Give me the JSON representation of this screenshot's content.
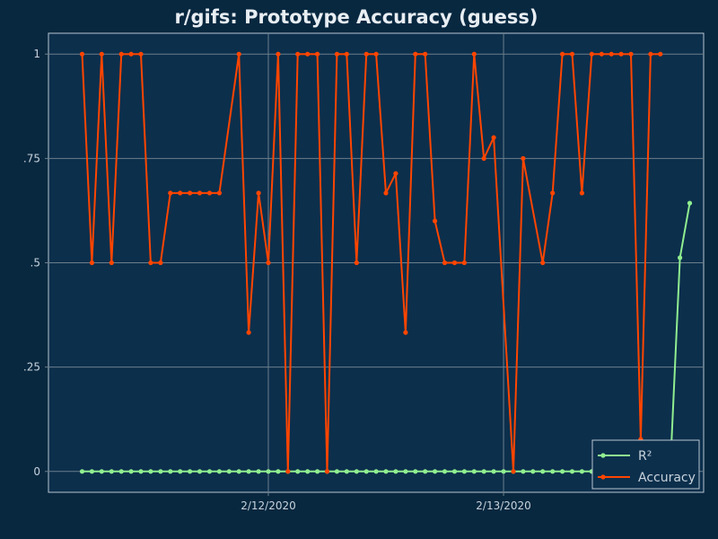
{
  "chart_data": {
    "type": "line",
    "title": "r/gifs: Prototype Accuracy (guess)",
    "xlabel": "",
    "ylabel": "",
    "x_tick_labels": [
      "2/12/2020",
      "2/13/2020"
    ],
    "y_tick_labels": [
      "0",
      ".25",
      ".5",
      ".75",
      "1"
    ],
    "y_ticks": [
      0,
      0.25,
      0.5,
      0.75,
      1
    ],
    "ylim": [
      -0.05,
      1.05
    ],
    "grid": true,
    "legend_position": "bottom-right",
    "series": [
      {
        "name": "R²",
        "color": "#90ee90",
        "values": [
          0,
          0,
          0,
          0,
          0,
          0,
          0,
          0,
          0,
          0,
          0,
          0,
          0,
          0,
          0,
          0,
          0,
          0,
          0,
          0,
          0,
          0,
          0,
          0,
          0,
          0,
          0,
          0,
          0,
          0,
          0,
          0,
          0,
          0,
          0,
          0,
          0,
          0,
          0,
          0,
          0,
          0,
          0,
          0,
          0,
          0,
          0,
          0,
          0,
          0,
          0,
          0,
          0,
          0,
          0,
          0,
          0,
          0,
          0,
          0,
          0,
          0.512,
          0.643
        ]
      },
      {
        "name": "Accuracy",
        "color": "#ff4500",
        "values": [
          1,
          0.5,
          1,
          0.5,
          1,
          1,
          1,
          0.5,
          0.5,
          0.667,
          0.667,
          0.667,
          0.667,
          0.667,
          0.667,
          null,
          1,
          0.333,
          0.667,
          0.5,
          1,
          0,
          1,
          1,
          1,
          0,
          1,
          1,
          0.5,
          1,
          1,
          0.667,
          0.714,
          0.333,
          1,
          1,
          0.6,
          0.5,
          0.5,
          0.5,
          1,
          0.75,
          0.8,
          null,
          0,
          0.75,
          null,
          0.5,
          0.667,
          1,
          1,
          0.667,
          1,
          1,
          1,
          1,
          1,
          0.077,
          1,
          1,
          null,
          null,
          null
        ]
      }
    ]
  },
  "colors": {
    "background": "#082840",
    "plot_background": "#0c2f4c",
    "grid": "#6b7f8c",
    "axis_text": "#c8d3dc",
    "title_text": "#e8eef3"
  }
}
